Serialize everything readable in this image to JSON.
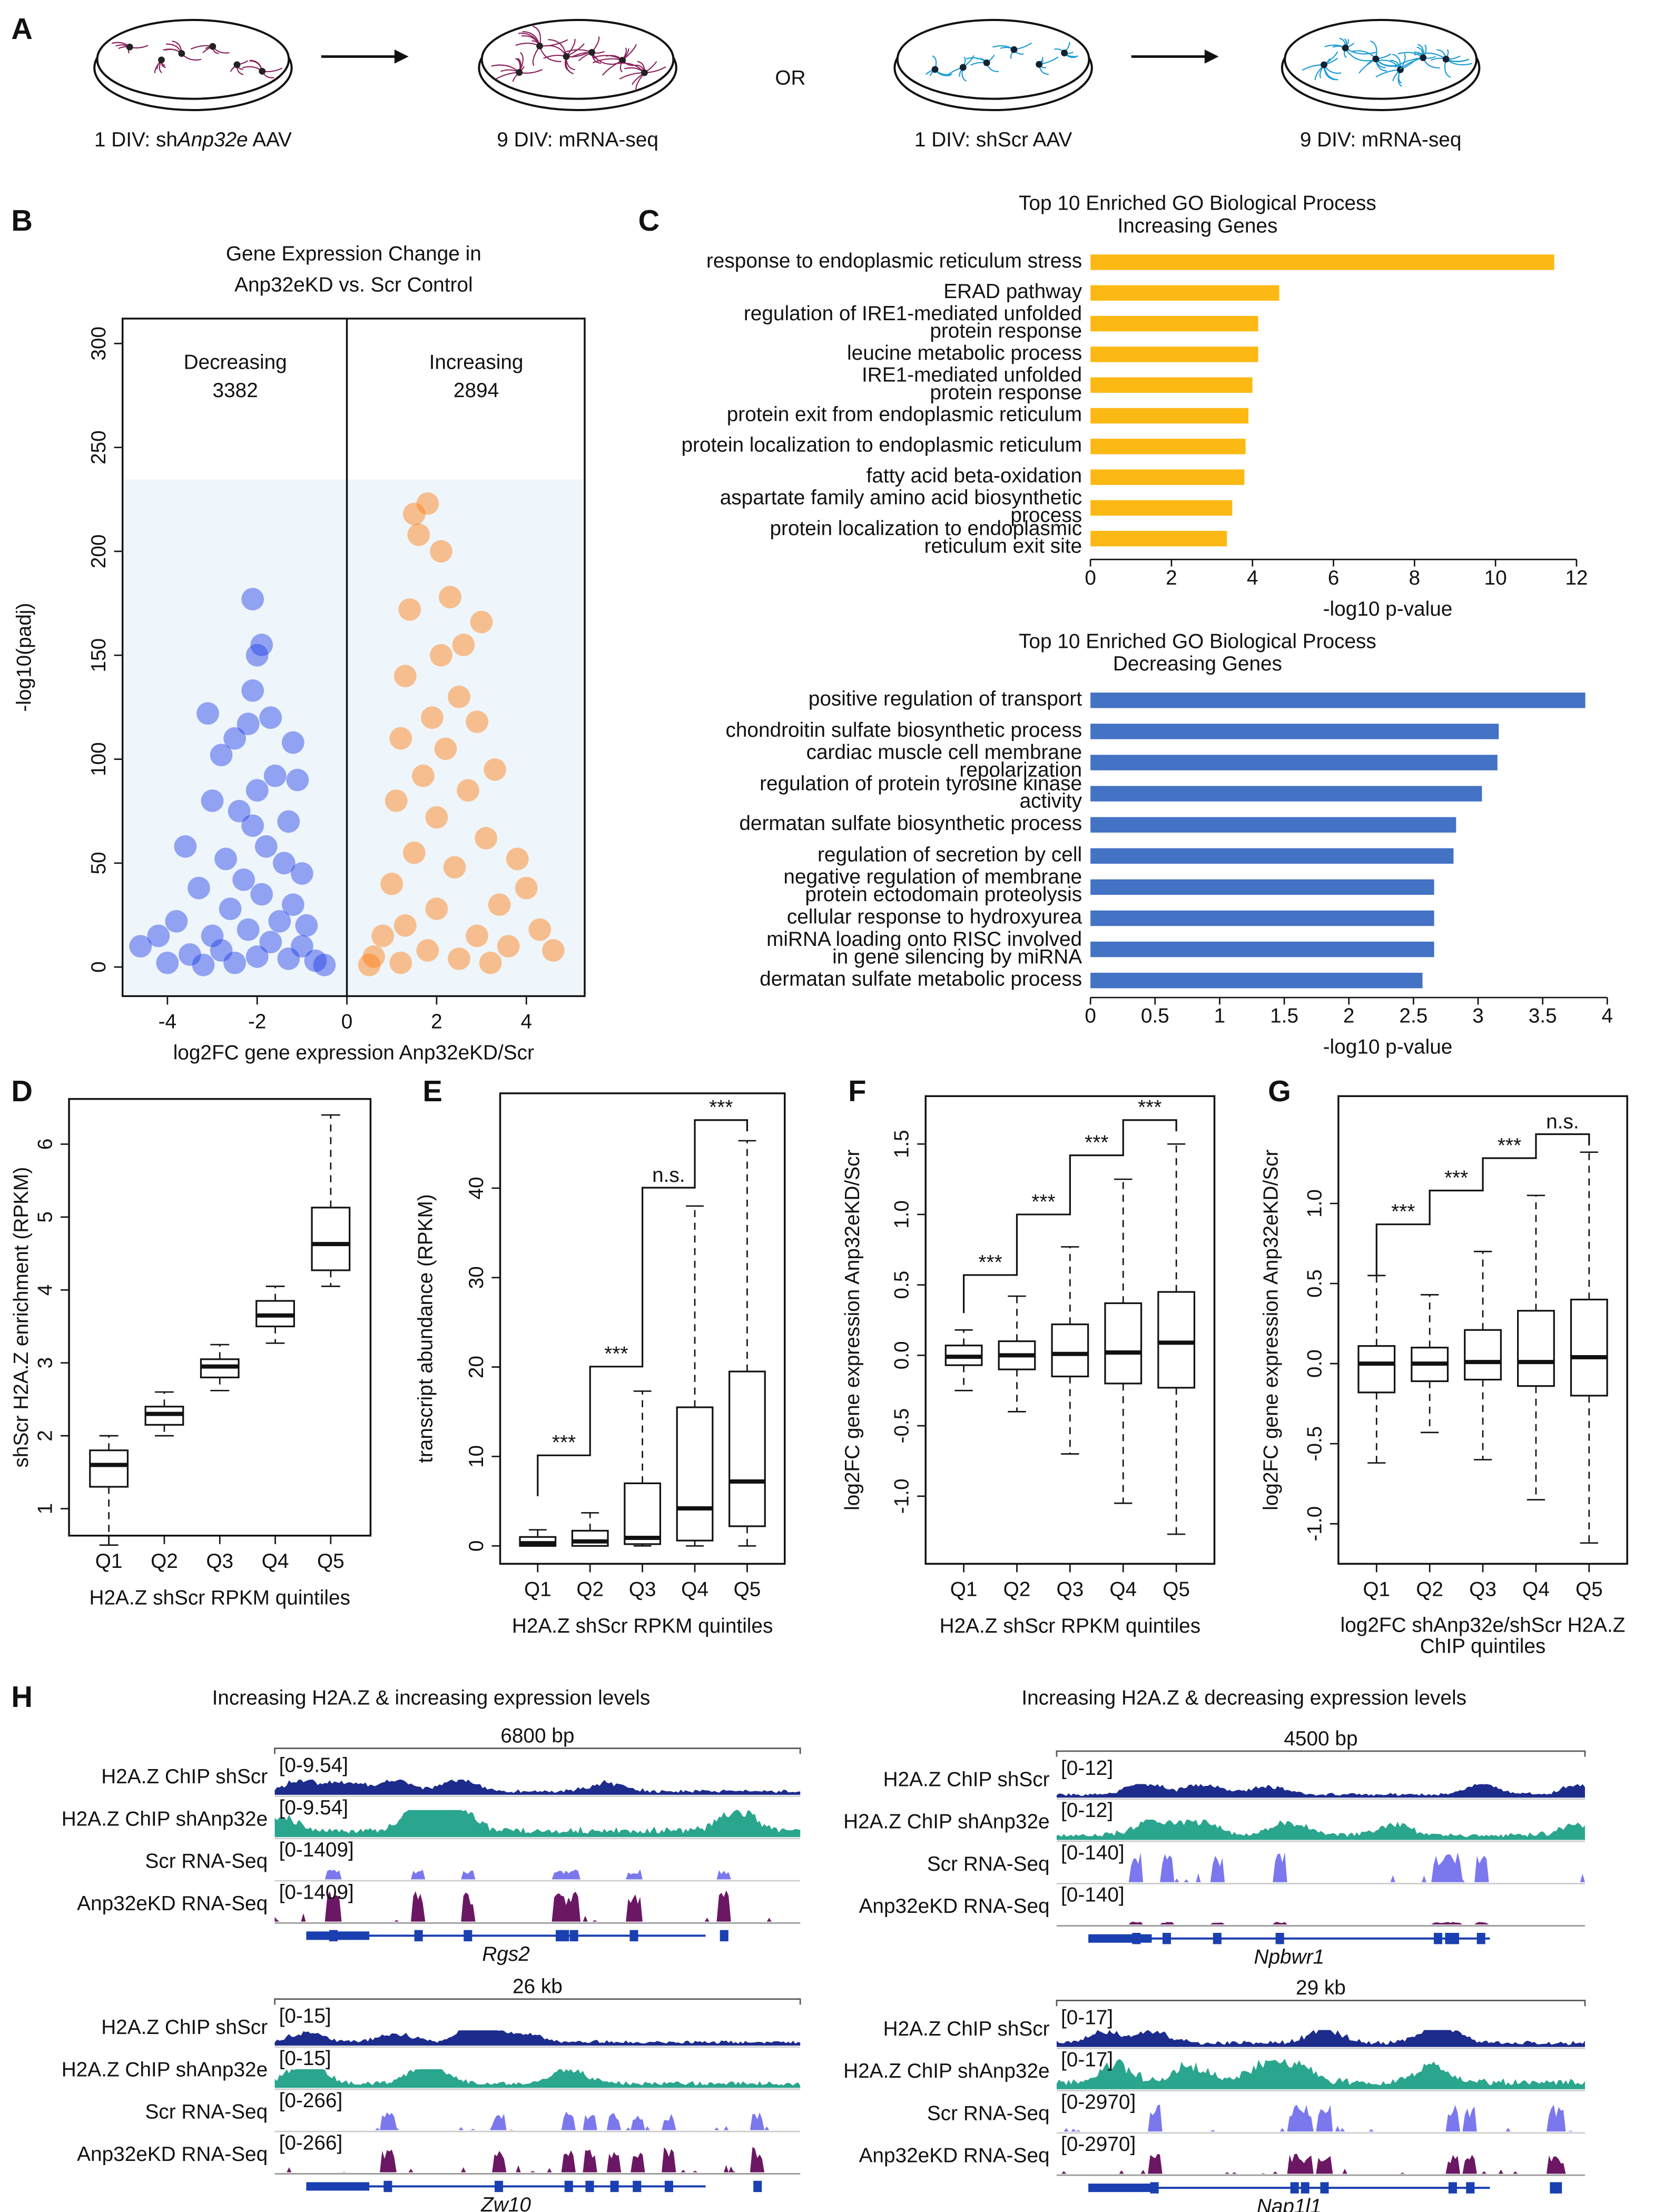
{
  "panel_labels": [
    "A",
    "B",
    "C",
    "D",
    "E",
    "F",
    "G",
    "H"
  ],
  "panel_a": {
    "steps": [
      [
        "1 DIV: sh",
        "Anp32e",
        " AAV"
      ],
      [
        "9 DIV: mRNA-seq"
      ],
      [
        "1 DIV: shScr AAV"
      ],
      [
        "9 DIV: mRNA-seq"
      ]
    ],
    "connector": "OR"
  },
  "chart_data": [
    {
      "type": "scatter",
      "title": [
        "Gene Expression Change in",
        "Anp32eKD vs. Scr Control"
      ],
      "xlabel": "log2FC gene expression Anp32eKD/Scr",
      "ylabel": "-log10(padj)",
      "annotations": [
        {
          "label": "Decreasing",
          "count": 3382
        },
        {
          "label": "Increasing",
          "count": 2894
        }
      ],
      "negative_color": "#1f3ce6",
      "positive_color": "#ff7a0a",
      "x": [
        -2.1,
        -2.0,
        -1.9,
        -2.1,
        -3.1,
        -2.2,
        -2.5,
        -1.7,
        -1.2,
        -2.8,
        -1.6,
        -2.0,
        -1.1,
        -3.0,
        -2.4,
        -1.3,
        -2.1,
        -1.8,
        -3.6,
        -2.7,
        -1.4,
        -1.0,
        -2.3,
        -3.3,
        -1.9,
        -1.2,
        -2.6,
        -3.8,
        -1.5,
        -0.9,
        -2.2,
        -4.2,
        -3.0,
        -1.7,
        -1.0,
        -2.8,
        -4.6,
        -3.5,
        -2.0,
        -1.3,
        -0.7,
        -2.5,
        -4.0,
        -0.5,
        -3.2,
        1.5,
        1.8,
        1.6,
        2.1,
        2.3,
        3.0,
        1.4,
        2.6,
        2.1,
        1.3,
        2.5,
        1.9,
        2.9,
        1.2,
        2.2,
        3.3,
        1.7,
        2.7,
        1.1,
        2.0,
        3.8,
        3.1,
        1.5,
        2.4,
        4.0,
        1.0,
        3.4,
        2.0,
        4.3,
        1.3,
        2.9,
        0.8,
        4.6,
        3.6,
        1.8,
        0.6,
        2.5,
        1.2,
        3.2,
        0.5
      ],
      "y": [
        177,
        150,
        155,
        133,
        122,
        117,
        110,
        120,
        108,
        102,
        92,
        85,
        90,
        80,
        75,
        70,
        68,
        58,
        58,
        52,
        50,
        45,
        42,
        38,
        35,
        30,
        28,
        22,
        22,
        20,
        18,
        15,
        15,
        12,
        10,
        8,
        10,
        6,
        5,
        4,
        3,
        2,
        2,
        1,
        1,
        218,
        223,
        208,
        200,
        178,
        166,
        172,
        155,
        150,
        140,
        130,
        120,
        118,
        110,
        105,
        95,
        92,
        85,
        80,
        72,
        52,
        62,
        55,
        48,
        38,
        40,
        30,
        28,
        18,
        20,
        15,
        15,
        8,
        10,
        8,
        5,
        4,
        2,
        2,
        1
      ],
      "xlim": [
        -5,
        5.3
      ],
      "ylim": [
        -14,
        312
      ],
      "xticks": [
        -4,
        -2,
        0,
        2,
        4
      ],
      "yticks": [
        0,
        50,
        100,
        150,
        200,
        250,
        300
      ]
    },
    {
      "type": "barh",
      "title": "Top 10 Enriched GO Biological Process",
      "subtitle": "Increasing Genes",
      "xlabel": "-log10 p-value",
      "color": "#fdb913",
      "categories": [
        [
          "response to endoplasmic reticulum stress"
        ],
        [
          "ERAD pathway"
        ],
        [
          "regulation of IRE1-mediated unfolded",
          "protein response"
        ],
        [
          "leucine metabolic process"
        ],
        [
          "IRE1-mediated unfolded",
          "protein response"
        ],
        [
          "protein exit from endoplasmic reticulum"
        ],
        [
          "protein localization to endoplasmic reticulum"
        ],
        [
          "fatty acid beta-oxidation"
        ],
        [
          "aspartate family amino acid biosynthetic",
          "process"
        ],
        [
          "protein localization to endoplasmic",
          "reticulum exit site"
        ]
      ],
      "values": [
        11.45,
        4.66,
        4.14,
        4.14,
        4.0,
        3.9,
        3.83,
        3.8,
        3.5,
        3.37
      ],
      "xlim": [
        0,
        12.8
      ],
      "xticks": [
        0,
        2,
        4,
        6,
        8,
        10,
        12
      ]
    },
    {
      "type": "barh",
      "title": "Top 10 Enriched GO Biological Process",
      "subtitle": "Decreasing Genes",
      "xlabel": "-log10 p-value",
      "color": "#4472c4",
      "categories": [
        [
          "positive regulation of transport"
        ],
        [
          "chondroitin sulfate biosynthetic process"
        ],
        [
          "cardiac muscle cell membrane",
          "repolarization"
        ],
        [
          "regulation of protein tyrosine kinase",
          "activity"
        ],
        [
          "dermatan sulfate biosynthetic process"
        ],
        [
          "regulation of secretion by cell"
        ],
        [
          "negative regulation of membrane",
          "protein ectodomain proteolysis"
        ],
        [
          "cellular response to hydroxyurea"
        ],
        [
          "miRNA loading onto RISC involved",
          "in gene silencing by miRNA"
        ],
        [
          "dermatan sulfate metabolic process"
        ]
      ],
      "values": [
        3.83,
        3.16,
        3.15,
        3.03,
        2.83,
        2.81,
        2.66,
        2.66,
        2.66,
        2.57
      ],
      "xlim": [
        0,
        4.1
      ],
      "xticks": [
        0,
        0.5,
        1,
        1.5,
        2,
        2.5,
        3,
        3.5,
        4
      ]
    },
    {
      "type": "box",
      "ylabel": "shScr H2A.Z enrichment (RPKM)",
      "xlabel": "H2A.Z shScr RPKM quintiles",
      "categories": [
        "Q1",
        "Q2",
        "Q3",
        "Q4",
        "Q5"
      ],
      "boxes": [
        {
          "whisker_low": 0.5,
          "q1": 1.3,
          "median": 1.6,
          "q3": 1.8,
          "whisker_high": 2.0
        },
        {
          "whisker_low": 2.0,
          "q1": 2.15,
          "median": 2.3,
          "q3": 2.4,
          "whisker_high": 2.6
        },
        {
          "whisker_low": 2.62,
          "q1": 2.8,
          "median": 2.95,
          "q3": 3.05,
          "whisker_high": 3.25
        },
        {
          "whisker_low": 3.27,
          "q1": 3.5,
          "median": 3.65,
          "q3": 3.85,
          "whisker_high": 4.05
        },
        {
          "whisker_low": 4.05,
          "q1": 4.27,
          "median": 4.63,
          "q3": 5.13,
          "whisker_high": 6.4
        }
      ],
      "ylim": [
        0.63,
        6.62
      ],
      "yticks": [
        1,
        2,
        3,
        4,
        5,
        6
      ]
    },
    {
      "type": "box",
      "ylabel": "transcript abundance (RPKM)",
      "xlabel": "H2A.Z shScr RPKM quintiles",
      "categories": [
        "Q1",
        "Q2",
        "Q3",
        "Q4",
        "Q5"
      ],
      "boxes": [
        {
          "whisker_low": 0,
          "q1": 0,
          "median": 0.3,
          "q3": 1,
          "whisker_high": 1.8
        },
        {
          "whisker_low": 0,
          "q1": 0,
          "median": 0.5,
          "q3": 1.7,
          "whisker_high": 3.7
        },
        {
          "whisker_low": 0,
          "q1": 0.2,
          "median": 0.9,
          "q3": 7,
          "whisker_high": 17.3
        },
        {
          "whisker_low": 0,
          "q1": 0.6,
          "median": 4.2,
          "q3": 15.5,
          "whisker_high": 38
        },
        {
          "whisker_low": 0,
          "q1": 2.2,
          "median": 7.2,
          "q3": 19.5,
          "whisker_high": 45.3
        }
      ],
      "annotations": [
        "***",
        "***",
        "n.s.",
        "***"
      ],
      "ylim": [
        -2.0,
        50.6
      ],
      "yticks": [
        0,
        10,
        20,
        30,
        40
      ]
    },
    {
      "type": "box",
      "ylabel": "log2FC gene expression Anp32eKD/Scr",
      "xlabel": "H2A.Z shScr RPKM quintiles",
      "categories": [
        "Q1",
        "Q2",
        "Q3",
        "Q4",
        "Q5"
      ],
      "boxes": [
        {
          "whisker_low": -0.25,
          "q1": -0.07,
          "median": -0.01,
          "q3": 0.07,
          "whisker_high": 0.18
        },
        {
          "whisker_low": -0.4,
          "q1": -0.1,
          "median": 0.0,
          "q3": 0.1,
          "whisker_high": 0.42
        },
        {
          "whisker_low": -0.7,
          "q1": -0.15,
          "median": 0.01,
          "q3": 0.22,
          "whisker_high": 0.77
        },
        {
          "whisker_low": -1.05,
          "q1": -0.2,
          "median": 0.02,
          "q3": 0.37,
          "whisker_high": 1.25
        },
        {
          "whisker_low": -1.27,
          "q1": -0.23,
          "median": 0.09,
          "q3": 0.45,
          "whisker_high": 1.5
        }
      ],
      "annotations": [
        "***",
        "***",
        "***",
        "***"
      ],
      "ylim": [
        -1.48,
        1.84
      ],
      "yticks": [
        {
          "value": -1,
          "label": "-1.0"
        },
        -0.5,
        {
          "value": 0,
          "label": "0.0"
        },
        0.5,
        {
          "value": 1,
          "label": "1.0"
        },
        1.5
      ]
    },
    {
      "type": "box",
      "ylabel": "log2FC gene expression Anp32eKD/Scr",
      "xlabel": [
        "log2FC shAnp32e/shScr H2A.Z",
        "ChIP quintiles"
      ],
      "categories": [
        "Q1",
        "Q2",
        "Q3",
        "Q4",
        "Q5"
      ],
      "boxes": [
        {
          "whisker_low": -0.62,
          "q1": -0.18,
          "median": 0.0,
          "q3": 0.11,
          "whisker_high": 0.55
        },
        {
          "whisker_low": -0.43,
          "q1": -0.11,
          "median": 0.0,
          "q3": 0.1,
          "whisker_high": 0.43
        },
        {
          "whisker_low": -0.6,
          "q1": -0.1,
          "median": 0.01,
          "q3": 0.21,
          "whisker_high": 0.7
        },
        {
          "whisker_low": -0.85,
          "q1": -0.14,
          "median": 0.01,
          "q3": 0.33,
          "whisker_high": 1.05
        },
        {
          "whisker_low": -1.12,
          "q1": -0.2,
          "median": 0.04,
          "q3": 0.4,
          "whisker_high": 1.32
        }
      ],
      "annotations": [
        "***",
        "***",
        "***",
        "n.s."
      ],
      "ylim": [
        -1.25,
        1.67
      ],
      "yticks": [
        {
          "value": -1,
          "label": "-1.0"
        },
        -0.5,
        {
          "value": 0,
          "label": "0.0"
        },
        0.5,
        {
          "value": 1,
          "label": "1.0"
        }
      ]
    }
  ],
  "panel_h": {
    "sections": [
      {
        "title": "Increasing H2A.Z & increasing expression levels",
        "groups": [
          {
            "scale": "6800 bp",
            "gene": "Rgs2",
            "tracks": [
              {
                "label": "H2A.Z ChIP shScr",
                "range": "[0-9.54]"
              },
              {
                "label": "H2A.Z ChIP shAnp32e",
                "range": "[0-9.54]"
              },
              {
                "label": "Scr RNA-Seq",
                "range": "[0-1409]"
              },
              {
                "label": "Anp32eKD RNA-Seq",
                "range": "[0-1409]"
              }
            ]
          },
          {
            "scale": "26 kb",
            "gene": "Zw10",
            "tracks": [
              {
                "label": "H2A.Z ChIP shScr",
                "range": "[0-15]"
              },
              {
                "label": "H2A.Z ChIP shAnp32e",
                "range": "[0-15]"
              },
              {
                "label": "Scr RNA-Seq",
                "range": "[0-266]"
              },
              {
                "label": "Anp32eKD RNA-Seq",
                "range": "[0-266]"
              }
            ]
          }
        ]
      },
      {
        "title": "Increasing H2A.Z & decreasing expression levels",
        "groups": [
          {
            "scale": "4500 bp",
            "gene": "Npbwr1",
            "tracks": [
              {
                "label": "H2A.Z ChIP shScr",
                "range": "[0-12]"
              },
              {
                "label": "H2A.Z ChIP shAnp32e",
                "range": "[0-12]"
              },
              {
                "label": "Scr RNA-Seq",
                "range": "[0-140]"
              },
              {
                "label": "Anp32eKD RNA-Seq",
                "range": "[0-140]"
              }
            ]
          },
          {
            "scale": "29 kb",
            "gene": "Nap1l1",
            "tracks": [
              {
                "label": "H2A.Z ChIP shScr",
                "range": "[0-17]"
              },
              {
                "label": "H2A.Z ChIP shAnp32e",
                "range": "[0-17]"
              },
              {
                "label": "Scr RNA-Seq",
                "range": "[0-2970]"
              },
              {
                "label": "Anp32eKD RNA-Seq",
                "range": "[0-2970]"
              }
            ]
          }
        ]
      }
    ]
  }
}
